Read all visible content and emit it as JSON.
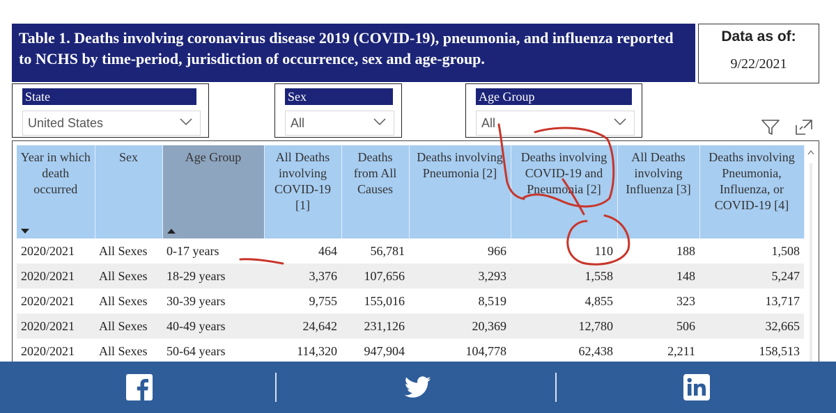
{
  "title": "Table 1. Deaths involving coronavirus disease 2019 (COVID-19), pneumonia, and influenza reported to NCHS by time-period, jurisdiction of occurrence, sex and age-group.",
  "data_as_of": {
    "label": "Data as of:",
    "value": "9/22/2021"
  },
  "filters": {
    "state": {
      "label": "State",
      "value": "United States"
    },
    "sex": {
      "label": "Sex",
      "value": "All"
    },
    "age_group": {
      "label": "Age Group",
      "value": "All"
    }
  },
  "icons": [
    "filter-icon",
    "expand-icon",
    "facebook-icon",
    "twitter-icon",
    "linkedin-icon"
  ],
  "table": {
    "columns": [
      "Year in which death occurred",
      "Sex",
      "Age Group",
      "All Deaths involving COVID-19 [1]",
      "Deaths from All Causes",
      "Deaths involving Pneumonia [2]",
      "Deaths involving COVID-19 and Pneumonia [2]",
      "All Deaths involving Influenza [3]",
      "Deaths involving Pneumonia, Influenza, or COVID-19 [4]"
    ],
    "rows": [
      [
        "2020/2021",
        "All Sexes",
        "0-17 years",
        "464",
        "56,781",
        "966",
        "110",
        "188",
        "1,508"
      ],
      [
        "2020/2021",
        "All Sexes",
        "18-29 years",
        "3,376",
        "107,656",
        "3,293",
        "1,558",
        "148",
        "5,247"
      ],
      [
        "2020/2021",
        "All Sexes",
        "30-39 years",
        "9,755",
        "155,016",
        "8,519",
        "4,855",
        "323",
        "13,717"
      ],
      [
        "2020/2021",
        "All Sexes",
        "40-49 years",
        "24,642",
        "231,126",
        "20,369",
        "12,780",
        "506",
        "32,665"
      ],
      [
        "2020/2021",
        "All Sexes",
        "50-64 years",
        "114,320",
        "947,904",
        "104,778",
        "62,438",
        "2,211",
        "158,513"
      ]
    ]
  },
  "colors": {
    "banner": "#1b2477",
    "header": "#a7cdf1",
    "header_sorted": "#8ea5bf",
    "social_bar": "#2f5d9a",
    "annotation": "#c8352a"
  }
}
